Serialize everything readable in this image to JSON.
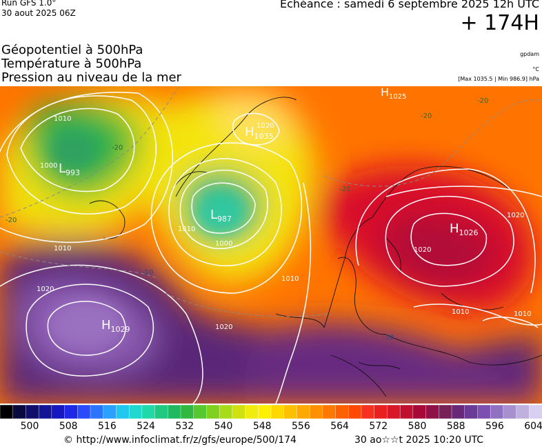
{
  "header": {
    "run": "Run GFS 1.0°",
    "run_date": "30 aout 2025 06Z",
    "echeance": "Echéance : samedi 6 septembre 2025 12h UTC",
    "lead": "+ 174H",
    "unit_geopot": "gpdam",
    "unit_temp": "°C",
    "pressure_range": "[Max 1035.5 | Min 986.9] hPa"
  },
  "titles": {
    "line1": "Géopotentiel à 500hPa",
    "line2": "Température à 500hPa",
    "line3": "Pression au niveau de la mer"
  },
  "map": {
    "pressure_centers": [
      {
        "type": "L",
        "value": "993"
      },
      {
        "type": "L",
        "value": "987"
      },
      {
        "type": "H",
        "value": "1035"
      },
      {
        "type": "H",
        "value": "1025"
      },
      {
        "type": "H",
        "value": "1026"
      },
      {
        "type": "H",
        "value": "1029"
      }
    ],
    "isobar_labels": [
      "1000",
      "1010",
      "1020",
      "1010",
      "1000",
      "1010",
      "1020",
      "1020",
      "1010",
      "1020",
      "1010",
      "1010",
      "1020"
    ],
    "temp_labels": [
      "-20",
      "-20",
      "-20",
      "-20",
      "-10",
      "-10",
      "-20"
    ]
  },
  "scale": {
    "labels": [
      "500",
      "508",
      "516",
      "524",
      "532",
      "540",
      "548",
      "556",
      "564",
      "572",
      "580",
      "588",
      "596",
      "604"
    ],
    "colors": [
      "#000000",
      "#0a0a40",
      "#10106a",
      "#141496",
      "#1818c0",
      "#1e28e6",
      "#2a4cff",
      "#2a74ff",
      "#2aa0ff",
      "#20c8f0",
      "#20d8d0",
      "#20d8a8",
      "#20c880",
      "#20b860",
      "#30b840",
      "#58c830",
      "#80d020",
      "#a8dc18",
      "#d0e010",
      "#f0ec10",
      "#fff000",
      "#ffd800",
      "#ffc000",
      "#ffa800",
      "#ff9000",
      "#ff7800",
      "#ff6000",
      "#ff4800",
      "#f83020",
      "#e82020",
      "#d81828",
      "#c01030",
      "#a80838",
      "#901048",
      "#782058",
      "#6a2878",
      "#6a3c98",
      "#7c50b0",
      "#9070c0",
      "#a890d0",
      "#c0b0e0",
      "#d8d0f0"
    ]
  },
  "footer": {
    "url": "© http://www.infoclimat.fr/z/gfs/europe/500/174",
    "generated": "30 ao☆☆t 2025 10:20 UTC"
  }
}
